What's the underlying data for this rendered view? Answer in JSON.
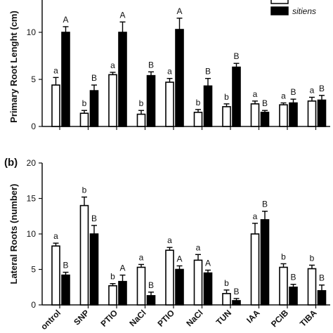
{
  "chart_data": [
    {
      "type": "bar",
      "panel_label": "",
      "ylabel": "Primary Root Lenght (cm)",
      "ylim": [
        0,
        15
      ],
      "yticks": [
        "0",
        "5",
        "10"
      ],
      "categories": [
        "Control",
        "SNP",
        "PTIO",
        "NaCl",
        "PTIO",
        "NaCl",
        "TUN",
        "IAA",
        "PCIB",
        "TIBA"
      ],
      "legend": {
        "placement": "top-right",
        "entries": [
          "",
          "sitiens"
        ]
      },
      "series": [
        {
          "name": "",
          "fill": "#ffffff",
          "values": [
            4.4,
            1.4,
            5.5,
            1.3,
            4.7,
            1.5,
            2.1,
            2.4,
            2.3,
            2.7
          ],
          "errors": [
            0.8,
            0.3,
            0.25,
            0.4,
            0.4,
            0.3,
            0.3,
            0.3,
            0.2,
            0.4
          ],
          "letters": [
            "a",
            "b",
            "a",
            "b",
            "a",
            "b",
            "b",
            "a",
            "a",
            "a"
          ]
        },
        {
          "name": "sitiens",
          "fill": "#000000",
          "values": [
            10.0,
            3.8,
            10.0,
            5.4,
            10.3,
            4.3,
            6.3,
            1.5,
            2.5,
            2.8
          ],
          "errors": [
            0.6,
            0.6,
            1.1,
            0.4,
            1.2,
            0.8,
            0.4,
            0.2,
            0.4,
            0.5
          ],
          "letters": [
            "A",
            "B",
            "A",
            "B",
            "A",
            "B",
            "B",
            "B",
            "B",
            "B"
          ]
        }
      ]
    },
    {
      "type": "bar",
      "panel_label": "(b)",
      "ylabel": "Lateral Roots (number)",
      "ylim": [
        0,
        20
      ],
      "yticks": [
        "0",
        "5",
        "10",
        "15",
        "20"
      ],
      "categories": [
        "ontrol",
        "SNP",
        "PTIO",
        "NaCl",
        "PTIO",
        "NaCl",
        "TUN",
        "IAA",
        "PCIB",
        "TIBA"
      ],
      "series": [
        {
          "name": "",
          "fill": "#ffffff",
          "values": [
            8.3,
            14.0,
            2.7,
            5.3,
            7.7,
            6.3,
            1.6,
            10.0,
            5.3,
            5.1
          ],
          "errors": [
            0.4,
            1.2,
            0.3,
            0.4,
            0.4,
            0.8,
            0.5,
            1.5,
            0.5,
            0.5
          ],
          "letters": [
            "a",
            "b",
            "b",
            "a",
            "a",
            "a",
            "b",
            "a",
            "b",
            "b"
          ]
        },
        {
          "name": "sitiens",
          "fill": "#000000",
          "values": [
            4.2,
            10.0,
            3.3,
            1.3,
            5.0,
            4.5,
            0.6,
            12.0,
            2.5,
            2.0
          ],
          "errors": [
            0.4,
            1.2,
            0.9,
            0.5,
            0.5,
            0.4,
            0.3,
            1.2,
            0.4,
            0.8
          ],
          "letters": [
            "B",
            "B",
            "A",
            "B",
            "A",
            "A",
            "B",
            "B",
            "B",
            "B"
          ]
        }
      ]
    }
  ]
}
